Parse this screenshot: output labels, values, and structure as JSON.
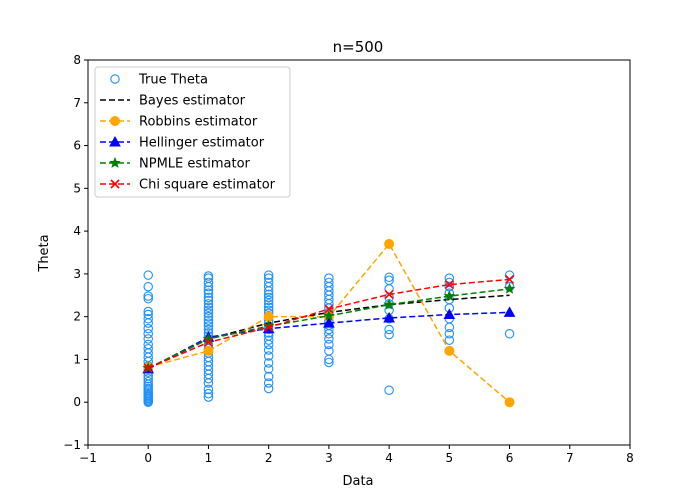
{
  "chart_data": {
    "type": "scatter",
    "title": "n=500",
    "xlabel": "Data",
    "ylabel": "Theta",
    "xlim": [
      -1,
      8
    ],
    "ylim": [
      -1,
      8
    ],
    "xticks": [
      -1,
      0,
      1,
      2,
      3,
      4,
      5,
      6,
      7,
      8
    ],
    "yticks": [
      -1,
      0,
      1,
      2,
      3,
      4,
      5,
      6,
      7,
      8
    ],
    "grid": false,
    "legend_position": "upper-left",
    "scatter": {
      "name": "True Theta",
      "color": "#1e90ff",
      "points": [
        {
          "x": 0,
          "ys": [
            0.0,
            0.02,
            0.05,
            0.08,
            0.1,
            0.13,
            0.16,
            0.2,
            0.24,
            0.28,
            0.32,
            0.37,
            0.42,
            0.48,
            0.55,
            0.62,
            0.7,
            0.78,
            0.85,
            0.95,
            1.05,
            1.15,
            1.25,
            1.35,
            1.48,
            1.6,
            1.72,
            1.85,
            1.95,
            2.05,
            2.12,
            2.42,
            2.48,
            2.7,
            2.97
          ]
        },
        {
          "x": 1,
          "ys": [
            0.12,
            0.2,
            0.3,
            0.45,
            0.55,
            0.65,
            0.75,
            0.85,
            0.95,
            1.05,
            1.15,
            1.25,
            1.35,
            1.45,
            1.55,
            1.62,
            1.7,
            1.78,
            1.85,
            1.92,
            2.0,
            2.08,
            2.15,
            2.22,
            2.3,
            2.38,
            2.45,
            2.55,
            2.62,
            2.7,
            2.8,
            2.9,
            2.95
          ]
        },
        {
          "x": 2,
          "ys": [
            0.32,
            0.45,
            0.6,
            0.78,
            0.92,
            1.08,
            1.22,
            1.35,
            1.45,
            1.55,
            1.62,
            1.7,
            1.78,
            1.85,
            1.92,
            2.0,
            2.08,
            2.15,
            2.22,
            2.3,
            2.38,
            2.45,
            2.52,
            2.6,
            2.7,
            2.8,
            2.9,
            2.97
          ]
        },
        {
          "x": 3,
          "ys": [
            0.93,
            1.0,
            1.2,
            1.35,
            1.48,
            1.6,
            1.7,
            1.8,
            1.9,
            2.0,
            2.1,
            2.2,
            2.3,
            2.4,
            2.5,
            2.6,
            2.7,
            2.8,
            2.9
          ]
        },
        {
          "x": 4,
          "ys": [
            0.28,
            1.58,
            1.7,
            1.95,
            2.15,
            2.3,
            2.45,
            2.65,
            2.85,
            2.92
          ]
        },
        {
          "x": 5,
          "ys": [
            1.45,
            1.6,
            1.75,
            1.95,
            2.2,
            2.4,
            2.55,
            2.7,
            2.8,
            2.9
          ]
        },
        {
          "x": 6,
          "ys": [
            1.6,
            2.7,
            2.97
          ]
        }
      ]
    },
    "x": [
      0,
      1,
      2,
      3,
      4,
      5,
      6
    ],
    "series": [
      {
        "name": "Bayes estimator",
        "color": "#000000",
        "marker": "none",
        "values": [
          0.78,
          1.48,
          1.85,
          2.1,
          2.28,
          2.4,
          2.5
        ]
      },
      {
        "name": "Robbins estimator",
        "color": "#ffa500",
        "marker": "circle",
        "values": [
          0.82,
          1.2,
          2.0,
          2.0,
          3.7,
          1.2,
          0.0
        ]
      },
      {
        "name": "Hellinger estimator",
        "color": "#0000ff",
        "marker": "triangle",
        "values": [
          0.78,
          1.52,
          1.72,
          1.85,
          1.97,
          2.05,
          2.1
        ]
      },
      {
        "name": "NPMLE estimator",
        "color": "#008000",
        "marker": "star",
        "values": [
          0.8,
          1.48,
          1.78,
          2.02,
          2.28,
          2.48,
          2.65
        ]
      },
      {
        "name": "Chi square estimator",
        "color": "#ff0000",
        "marker": "x",
        "values": [
          0.8,
          1.4,
          1.75,
          2.18,
          2.52,
          2.75,
          2.87
        ]
      }
    ]
  }
}
